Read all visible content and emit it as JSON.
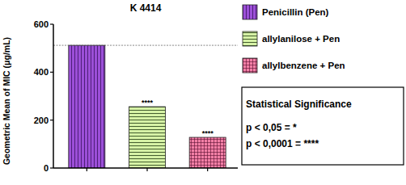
{
  "chart_data": {
    "type": "bar",
    "title": "K 4414",
    "y_label": "Geometric Mean of MIC (μg/mL)",
    "categories": [
      null,
      null,
      null
    ],
    "series": [
      {
        "name": "Penicillin (Pen)",
        "color": "#9c4fd8",
        "values": [
          512,
          null,
          null
        ]
      },
      {
        "name": "allylanilose + Pen",
        "color": "#d6f2a6",
        "values": [
          null,
          256,
          null
        ]
      },
      {
        "name": "allylbenzene + Pen",
        "color": "#f27fa6",
        "values": [
          null,
          null,
          128
        ]
      }
    ],
    "annotations": [
      {
        "text": "****",
        "category": 1
      },
      {
        "text": "****",
        "category": 2
      }
    ],
    "reference_lines": [
      512
    ],
    "significance_box": {
      "title": "Statistical Significance",
      "entries": [
        "p < 0,05 = *",
        "p < 0,0001 = ****"
      ]
    },
    "ylim": [
      0,
      600
    ],
    "yticks": [
      0,
      200,
      400,
      600
    ],
    "grid": false,
    "legend": "right"
  }
}
